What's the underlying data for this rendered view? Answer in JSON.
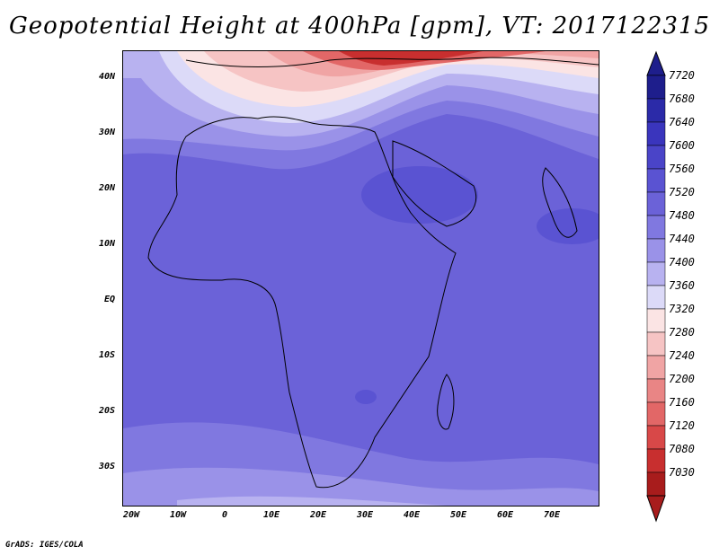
{
  "title": "Geopotential Height at 400hPa [gpm], VT: 2017122315",
  "credit": "GrADS: IGES/COLA",
  "lat_labels": [
    "40N",
    "30N",
    "20N",
    "10N",
    "EQ",
    "10S",
    "20S",
    "30S"
  ],
  "lon_labels": [
    "20W",
    "10W",
    "0",
    "10E",
    "20E",
    "30E",
    "40E",
    "50E",
    "60E",
    "70E"
  ],
  "legend": {
    "units": "gpm",
    "levels": [
      "7720",
      "7680",
      "7640",
      "7600",
      "7560",
      "7520",
      "7480",
      "7440",
      "7400",
      "7360",
      "7320",
      "7280",
      "7240",
      "7200",
      "7160",
      "7120",
      "7080",
      "7030"
    ],
    "colors": [
      "#1e1e8c",
      "#2b2aa8",
      "#3a35bd",
      "#4a44c8",
      "#5a53d2",
      "#6b62d8",
      "#8078e0",
      "#9a92e8",
      "#b8b2f0",
      "#dcdaf8",
      "#fbe4e4",
      "#f6c4c4",
      "#f0a4a4",
      "#e98585",
      "#e26767",
      "#d84848",
      "#c82f2f",
      "#a81c1c"
    ]
  }
}
